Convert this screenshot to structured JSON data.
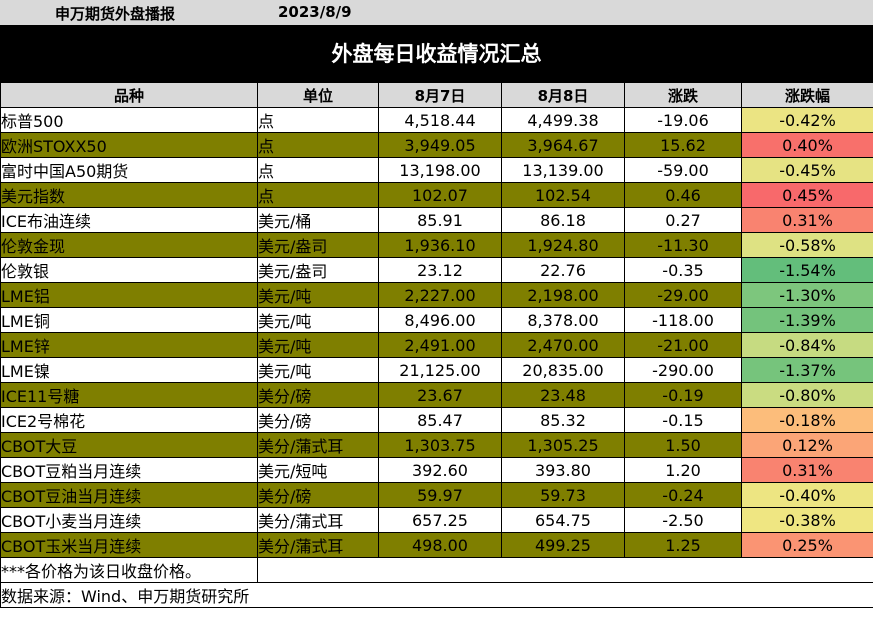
{
  "header": {
    "brand": "申万期货外盘播报",
    "date": "2023/8/9",
    "title": "外盘每日收益情况汇总"
  },
  "columns": [
    "品种",
    "单位",
    "8月7日",
    "8月8日",
    "涨跌",
    "涨跌幅"
  ],
  "rows": [
    {
      "name": "标普500",
      "unit": "点",
      "d1": "4,518.44",
      "d2": "4,499.38",
      "chg": "-19.06",
      "pct": "-0.42%",
      "color": "#ebe483",
      "alt": false
    },
    {
      "name": "欧洲STOXX50",
      "unit": "点",
      "d1": "3,949.05",
      "d2": "3,964.67",
      "chg": "15.62",
      "pct": "0.40%",
      "color": "#f8706b",
      "alt": true
    },
    {
      "name": "富时中国A50期货",
      "unit": "点",
      "d1": "13,198.00",
      "d2": "13,139.00",
      "chg": "-59.00",
      "pct": "-0.45%",
      "color": "#e6e383",
      "alt": false
    },
    {
      "name": "美元指数",
      "unit": "点",
      "d1": "102.07",
      "d2": "102.54",
      "chg": "0.46",
      "pct": "0.45%",
      "color": "#f8696b",
      "alt": true
    },
    {
      "name": "ICE布油连续",
      "unit": "美元/桶",
      "d1": "85.91",
      "d2": "86.18",
      "chg": "0.27",
      "pct": "0.31%",
      "color": "#f98370",
      "alt": false
    },
    {
      "name": "伦敦金现",
      "unit": "美元/盎司",
      "d1": "1,936.10",
      "d2": "1,924.80",
      "chg": "-11.30",
      "pct": "-0.58%",
      "color": "#dee283",
      "alt": true
    },
    {
      "name": "伦敦银",
      "unit": "美元/盎司",
      "d1": "23.12",
      "d2": "22.76",
      "chg": "-0.35",
      "pct": "-1.54%",
      "color": "#63be7b",
      "alt": false
    },
    {
      "name": "LME铝",
      "unit": "美元/吨",
      "d1": "2,227.00",
      "d2": "2,198.00",
      "chg": "-29.00",
      "pct": "-1.30%",
      "color": "#7dc67d",
      "alt": true
    },
    {
      "name": "LME铜",
      "unit": "美元/吨",
      "d1": "8,496.00",
      "d2": "8,378.00",
      "chg": "-118.00",
      "pct": "-1.39%",
      "color": "#74c37c",
      "alt": false
    },
    {
      "name": "LME锌",
      "unit": "美元/吨",
      "d1": "2,491.00",
      "d2": "2,470.00",
      "chg": "-21.00",
      "pct": "-0.84%",
      "color": "#c6db81",
      "alt": true
    },
    {
      "name": "LME镍",
      "unit": "美元/吨",
      "d1": "21,125.00",
      "d2": "20,835.00",
      "chg": "-290.00",
      "pct": "-1.37%",
      "color": "#76c47c",
      "alt": false
    },
    {
      "name": "ICE11号糖",
      "unit": "美分/磅",
      "d1": "23.67",
      "d2": "23.48",
      "chg": "-0.19",
      "pct": "-0.80%",
      "color": "#cadc81",
      "alt": true
    },
    {
      "name": "ICE2号棉花",
      "unit": "美分/磅",
      "d1": "85.47",
      "d2": "85.32",
      "chg": "-0.15",
      "pct": "-0.18%",
      "color": "#fcbd7b",
      "alt": false
    },
    {
      "name": "CBOT大豆",
      "unit": "美分/蒲式耳",
      "d1": "1,303.75",
      "d2": "1,305.25",
      "chg": "1.50",
      "pct": "0.12%",
      "color": "#fba577",
      "alt": true
    },
    {
      "name": "CBOT豆粕当月连续",
      "unit": "美元/短吨",
      "d1": "392.60",
      "d2": "393.80",
      "chg": "1.20",
      "pct": "0.31%",
      "color": "#f98370",
      "alt": false
    },
    {
      "name": "CBOT豆油当月连续",
      "unit": "美分/磅",
      "d1": "59.97",
      "d2": "59.73",
      "chg": "-0.24",
      "pct": "-0.40%",
      "color": "#ede582",
      "alt": true
    },
    {
      "name": "CBOT小麦当月连续",
      "unit": "美分/蒲式耳",
      "d1": "657.25",
      "d2": "654.75",
      "chg": "-2.50",
      "pct": "-0.38%",
      "color": "#efe682",
      "alt": false
    },
    {
      "name": "CBOT玉米当月连续",
      "unit": "美分/蒲式耳",
      "d1": "498.00",
      "d2": "499.25",
      "chg": "1.25",
      "pct": "0.25%",
      "color": "#fa9473",
      "alt": true
    }
  ],
  "footer": {
    "note": "***各价格为该日收盘价格。",
    "source": "数据来源：Wind、申万期货研究所"
  },
  "colors": {
    "alt_row": "#7f7f00",
    "header_bg": "#d9d9d9",
    "title_bg": "#000000"
  }
}
